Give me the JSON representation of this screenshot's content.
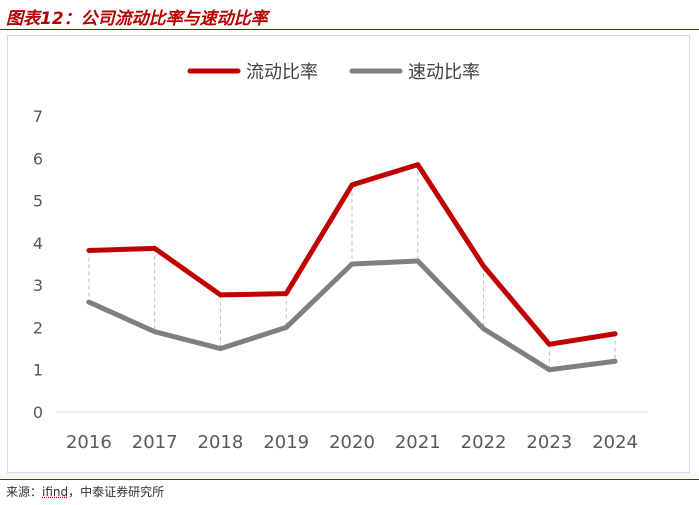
{
  "header": {
    "title": "图表12：公司流动比率与速动比率"
  },
  "footer": {
    "source_prefix": "来源：",
    "source_name": "ifind",
    "source_suffix": "，中泰证券研究所"
  },
  "chart_data": {
    "type": "line",
    "title": "",
    "xlabel": "",
    "ylabel": "",
    "categories": [
      "2016",
      "2017",
      "2018",
      "2019",
      "2020",
      "2021",
      "2022",
      "2023",
      "2024"
    ],
    "ylim": [
      0,
      7
    ],
    "yticks": [
      0,
      1,
      2,
      3,
      4,
      5,
      6,
      7
    ],
    "grid": false,
    "drop_lines": true,
    "legend": "top-center",
    "series": [
      {
        "name": "流动比率",
        "color": "#c00000",
        "values": [
          3.82,
          3.87,
          2.77,
          2.8,
          5.37,
          5.85,
          3.45,
          1.6,
          1.85
        ]
      },
      {
        "name": "速动比率",
        "color": "#7f7f7f",
        "values": [
          2.6,
          1.9,
          1.5,
          2.0,
          3.5,
          3.57,
          1.97,
          1.0,
          1.2
        ]
      }
    ]
  }
}
